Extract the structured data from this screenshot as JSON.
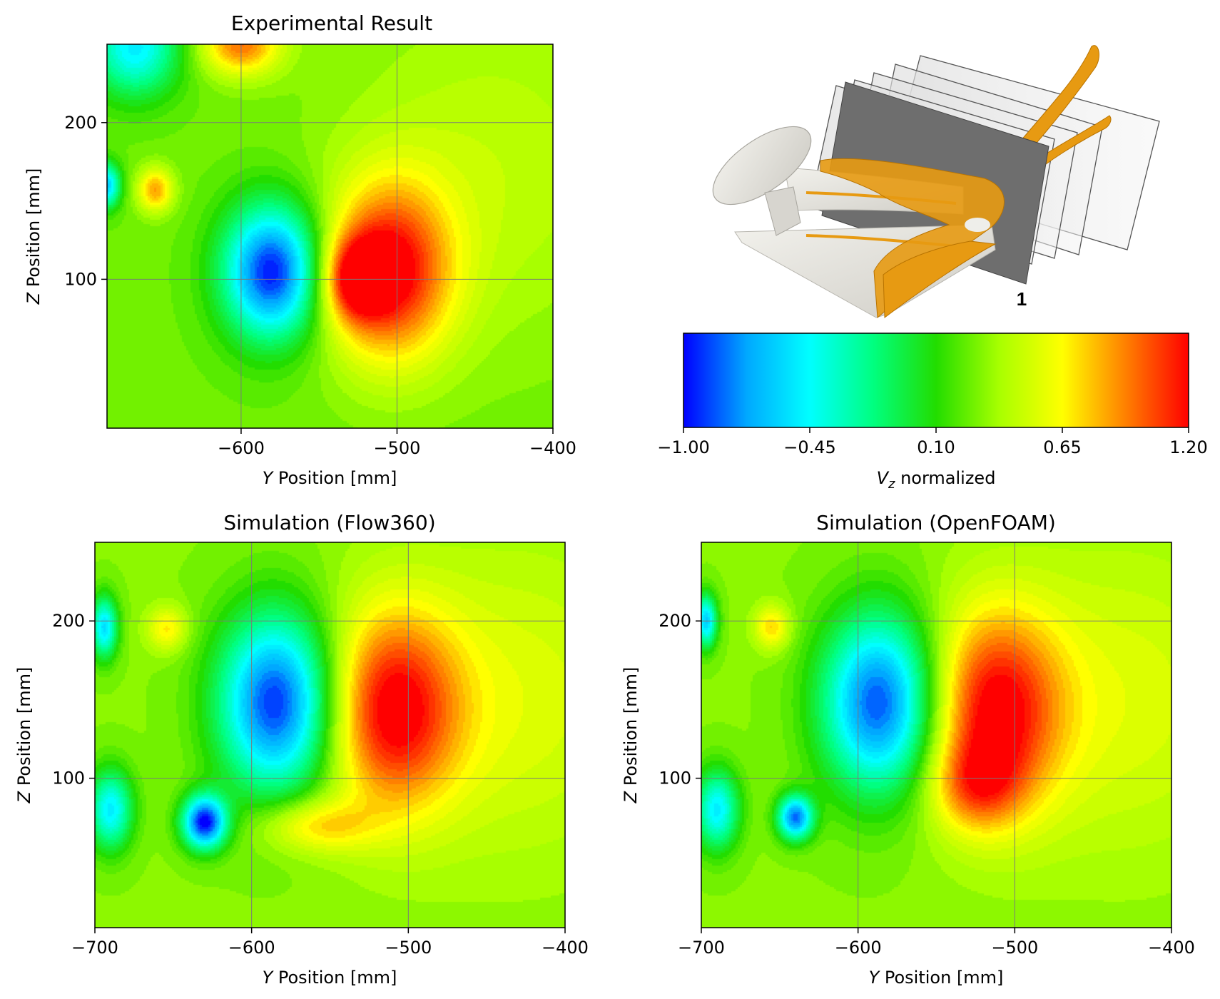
{
  "colors": {
    "colormap": [
      "#0000ff",
      "#00a8ff",
      "#00ffff",
      "#00ff80",
      "#22dd00",
      "#a8ff00",
      "#ffff00",
      "#ff8000",
      "#ff0000"
    ],
    "object_body": "#e2e0da",
    "vortex_isosurface": "#e79a12",
    "plane_main": "#6e6e6e",
    "plane_outline": "#444444"
  },
  "chart_data": [
    {
      "type": "heatmap",
      "title": "Experimental Result",
      "xlabel_var": "Y",
      "xlabel_rest": " Position [mm]",
      "ylabel_var": "Z",
      "ylabel_rest": " Position [mm]",
      "xlim": [
        -686,
        -400
      ],
      "ylim": [
        5,
        250
      ],
      "x_ticks": [
        -600,
        -500,
        -400
      ],
      "x_tick_labels": [
        "−600",
        "−500",
        "−400"
      ],
      "y_ticks": [
        100,
        200
      ],
      "y_tick_labels": [
        "100",
        "200"
      ],
      "grid": true,
      "background_value": 0.25,
      "features": [
        {
          "x": -580,
          "z": 105,
          "value": -1.0,
          "sx": 22,
          "sz": 30
        },
        {
          "x": -505,
          "z": 105,
          "value": 1.2,
          "sx": 28,
          "sz": 40
        },
        {
          "x": -527,
          "z": 100,
          "value": 0.9,
          "sx": 14,
          "sz": 18
        },
        {
          "x": -655,
          "z": 157,
          "value": 0.85,
          "sx": 8,
          "sz": 10
        },
        {
          "x": -600,
          "z": 250,
          "value": 0.95,
          "sx": 18,
          "sz": 14
        },
        {
          "x": -668,
          "z": 248,
          "value": -0.5,
          "sx": 20,
          "sz": 22
        },
        {
          "x": -686,
          "z": 160,
          "value": -0.6,
          "sx": 6,
          "sz": 10
        },
        {
          "x": -440,
          "z": 170,
          "value": 0.45,
          "sx": 70,
          "sz": 80
        }
      ]
    },
    {
      "type": "heatmap",
      "title": "Simulation (Flow360)",
      "xlabel_var": "Y",
      "xlabel_rest": " Position [mm]",
      "ylabel_var": "Z",
      "ylabel_rest": " Position [mm]",
      "xlim": [
        -700,
        -400
      ],
      "ylim": [
        5,
        250
      ],
      "x_ticks": [
        -700,
        -600,
        -500,
        -400
      ],
      "x_tick_labels": [
        "−700",
        "−600",
        "−500",
        "−400"
      ],
      "y_ticks": [
        100,
        200
      ],
      "y_tick_labels": [
        "100",
        "200"
      ],
      "grid": true,
      "background_value": 0.3,
      "features": [
        {
          "x": -584,
          "z": 148,
          "value": -0.95,
          "sx": 26,
          "sz": 40
        },
        {
          "x": -510,
          "z": 143,
          "value": 1.2,
          "sx": 30,
          "sz": 45
        },
        {
          "x": -630,
          "z": 72,
          "value": -1.0,
          "sx": 10,
          "sz": 12
        },
        {
          "x": -560,
          "z": 70,
          "value": 0.75,
          "sx": 25,
          "sz": 12
        },
        {
          "x": -654,
          "z": 195,
          "value": 0.7,
          "sx": 9,
          "sz": 10
        },
        {
          "x": -694,
          "z": 196,
          "value": -0.55,
          "sx": 6,
          "sz": 14
        },
        {
          "x": -690,
          "z": 80,
          "value": -0.5,
          "sx": 10,
          "sz": 18
        },
        {
          "x": -430,
          "z": 150,
          "value": 0.55,
          "sx": 60,
          "sz": 70
        }
      ]
    },
    {
      "type": "heatmap",
      "title": "Simulation (OpenFOAM)",
      "xlabel_var": "Y",
      "xlabel_rest": " Position [mm]",
      "ylabel_var": "Z",
      "ylabel_rest": " Position [mm]",
      "xlim": [
        -700,
        -400
      ],
      "ylim": [
        5,
        250
      ],
      "x_ticks": [
        -700,
        -600,
        -500,
        -400
      ],
      "x_tick_labels": [
        "−700",
        "−600",
        "−500",
        "−400"
      ],
      "y_ticks": [
        100,
        200
      ],
      "y_tick_labels": [
        "100",
        "200"
      ],
      "grid": true,
      "background_value": 0.3,
      "features": [
        {
          "x": -586,
          "z": 148,
          "value": -0.9,
          "sx": 26,
          "sz": 40
        },
        {
          "x": -513,
          "z": 143,
          "value": 1.2,
          "sx": 30,
          "sz": 45
        },
        {
          "x": -640,
          "z": 75,
          "value": -0.8,
          "sx": 8,
          "sz": 10
        },
        {
          "x": -525,
          "z": 95,
          "value": 0.75,
          "sx": 20,
          "sz": 20
        },
        {
          "x": -655,
          "z": 196,
          "value": 0.75,
          "sx": 8,
          "sz": 10
        },
        {
          "x": -697,
          "z": 200,
          "value": -0.6,
          "sx": 5,
          "sz": 12
        },
        {
          "x": -690,
          "z": 80,
          "value": -0.5,
          "sx": 10,
          "sz": 18
        },
        {
          "x": -430,
          "z": 150,
          "value": 0.55,
          "sx": 60,
          "sz": 70
        }
      ]
    },
    {
      "type": "colorbar",
      "label_var": "V",
      "label_sub": "z",
      "label_rest": " normalized",
      "range": [
        -1.0,
        1.2
      ],
      "ticks": [
        -1.0,
        -0.45,
        0.1,
        0.65,
        1.2
      ],
      "tick_labels": [
        "−1.00",
        "−0.45",
        "0.10",
        "0.65",
        "1.20"
      ]
    }
  ],
  "diagram": {
    "plane_label": "1"
  }
}
